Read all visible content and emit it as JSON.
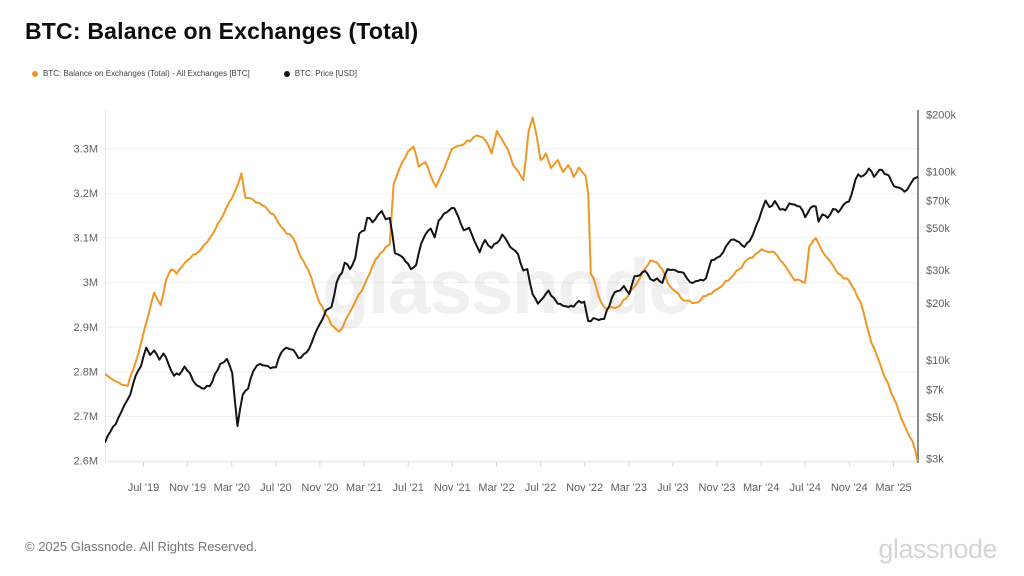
{
  "page": {
    "footer_left": "© 2025 Glassnode. All Rights Reserved.",
    "footer_logo": "glassnode"
  },
  "chart_data": {
    "type": "line",
    "title": "BTC: Balance on Exchanges (Total)",
    "watermark": "glassnode",
    "legend_position": "top-left",
    "grid": "horizontal-only",
    "grid_color": "#f0f0f0",
    "axis_colors": {
      "left_line": "#e8e8e8",
      "bottom_line": "#e6e6e6",
      "tick_mark": "#d9d9d9",
      "right_line": "#4d4d4d",
      "label": "#616161"
    },
    "x_domain_decimal_years": [
      2019.209,
      2025.352
    ],
    "x_ticks": [
      [
        2019.5,
        "Jul '19"
      ],
      [
        2019.833,
        "Nov '19"
      ],
      [
        2020.167,
        "Mar '20"
      ],
      [
        2020.5,
        "Jul '20"
      ],
      [
        2020.833,
        "Nov '20"
      ],
      [
        2021.167,
        "Mar '21"
      ],
      [
        2021.5,
        "Jul '21"
      ],
      [
        2021.833,
        "Nov '21"
      ],
      [
        2022.167,
        "Mar '22"
      ],
      [
        2022.5,
        "Jul '22"
      ],
      [
        2022.833,
        "Nov '22"
      ],
      [
        2023.167,
        "Mar '23"
      ],
      [
        2023.5,
        "Jul '23"
      ],
      [
        2023.833,
        "Nov '23"
      ],
      [
        2024.167,
        "Mar '24"
      ],
      [
        2024.5,
        "Jul '24"
      ],
      [
        2024.833,
        "Nov '24"
      ],
      [
        2025.167,
        "Mar '25"
      ]
    ],
    "y_left": {
      "scale": "linear",
      "unit": "BTC (millions)",
      "range_millions": [
        2.598,
        3.387
      ],
      "ticks": [
        [
          3.3,
          "3.3M"
        ],
        [
          3.2,
          "3.2M"
        ],
        [
          3.1,
          "3.1M"
        ],
        [
          3.0,
          "3M"
        ],
        [
          2.9,
          "2.9M"
        ],
        [
          2.8,
          "2.8M"
        ],
        [
          2.7,
          "2.7M"
        ],
        [
          2.6,
          "2.6M"
        ]
      ]
    },
    "y_right": {
      "scale": "log",
      "unit": "USD (thousands)",
      "range_thousands": [
        2.9,
        212.6
      ],
      "ticks": [
        [
          200,
          "$200k"
        ],
        [
          100,
          "$100k"
        ],
        [
          70,
          "$70k"
        ],
        [
          50,
          "$50k"
        ],
        [
          30,
          "$30k"
        ],
        [
          20,
          "$20k"
        ],
        [
          10,
          "$10k"
        ],
        [
          7,
          "$7k"
        ],
        [
          5,
          "$5k"
        ],
        [
          3,
          "$3k"
        ]
      ]
    },
    "series": [
      {
        "name": "BTC: Balance on Exchanges (Total) - All Exchanges [BTC]",
        "axis": "left",
        "color": "#EE9727",
        "unit": "million BTC",
        "points": [
          [
            2019.21,
            2.795
          ],
          [
            2019.27,
            2.782
          ],
          [
            2019.38,
            2.768
          ],
          [
            2019.46,
            2.84
          ],
          [
            2019.52,
            2.91
          ],
          [
            2019.58,
            2.978
          ],
          [
            2019.63,
            2.95
          ],
          [
            2019.67,
            3.005
          ],
          [
            2019.71,
            3.03
          ],
          [
            2019.75,
            3.02
          ],
          [
            2019.83,
            3.05
          ],
          [
            2019.92,
            3.07
          ],
          [
            2020.0,
            3.1
          ],
          [
            2020.08,
            3.14
          ],
          [
            2020.17,
            3.19
          ],
          [
            2020.24,
            3.245
          ],
          [
            2020.27,
            3.19
          ],
          [
            2020.33,
            3.185
          ],
          [
            2020.42,
            3.17
          ],
          [
            2020.5,
            3.145
          ],
          [
            2020.58,
            3.11
          ],
          [
            2020.63,
            3.1
          ],
          [
            2020.67,
            3.07
          ],
          [
            2020.75,
            3.025
          ],
          [
            2020.83,
            2.955
          ],
          [
            2020.92,
            2.905
          ],
          [
            2020.98,
            2.89
          ],
          [
            2021.08,
            2.945
          ],
          [
            2021.17,
            2.995
          ],
          [
            2021.25,
            3.05
          ],
          [
            2021.33,
            3.08
          ],
          [
            2021.36,
            3.085
          ],
          [
            2021.39,
            3.22
          ],
          [
            2021.42,
            3.245
          ],
          [
            2021.5,
            3.295
          ],
          [
            2021.54,
            3.305
          ],
          [
            2021.58,
            3.26
          ],
          [
            2021.63,
            3.27
          ],
          [
            2021.71,
            3.215
          ],
          [
            2021.79,
            3.27
          ],
          [
            2021.83,
            3.3
          ],
          [
            2021.92,
            3.31
          ],
          [
            2022.02,
            3.33
          ],
          [
            2022.08,
            3.32
          ],
          [
            2022.13,
            3.29
          ],
          [
            2022.17,
            3.34
          ],
          [
            2022.21,
            3.32
          ],
          [
            2022.25,
            3.3
          ],
          [
            2022.29,
            3.265
          ],
          [
            2022.33,
            3.25
          ],
          [
            2022.37,
            3.23
          ],
          [
            2022.41,
            3.34
          ],
          [
            2022.44,
            3.37
          ],
          [
            2022.47,
            3.33
          ],
          [
            2022.5,
            3.275
          ],
          [
            2022.54,
            3.29
          ],
          [
            2022.58,
            3.257
          ],
          [
            2022.63,
            3.275
          ],
          [
            2022.67,
            3.248
          ],
          [
            2022.71,
            3.263
          ],
          [
            2022.75,
            3.237
          ],
          [
            2022.79,
            3.258
          ],
          [
            2022.84,
            3.24
          ],
          [
            2022.86,
            3.2
          ],
          [
            2022.88,
            3.02
          ],
          [
            2022.9,
            3.01
          ],
          [
            2022.92,
            2.99
          ],
          [
            2022.96,
            2.955
          ],
          [
            2023.0,
            2.94
          ],
          [
            2023.08,
            2.945
          ],
          [
            2023.17,
            2.975
          ],
          [
            2023.25,
            3.01
          ],
          [
            2023.33,
            3.05
          ],
          [
            2023.38,
            3.045
          ],
          [
            2023.42,
            3.03
          ],
          [
            2023.46,
            3.0
          ],
          [
            2023.5,
            2.985
          ],
          [
            2023.58,
            2.96
          ],
          [
            2023.67,
            2.955
          ],
          [
            2023.75,
            2.97
          ],
          [
            2023.83,
            2.985
          ],
          [
            2023.92,
            3.005
          ],
          [
            2024.0,
            3.03
          ],
          [
            2024.08,
            3.055
          ],
          [
            2024.17,
            3.075
          ],
          [
            2024.25,
            3.07
          ],
          [
            2024.33,
            3.045
          ],
          [
            2024.42,
            3.005
          ],
          [
            2024.5,
            3.0
          ],
          [
            2024.53,
            3.08
          ],
          [
            2024.58,
            3.1
          ],
          [
            2024.63,
            3.07
          ],
          [
            2024.67,
            3.055
          ],
          [
            2024.75,
            3.02
          ],
          [
            2024.83,
            3.005
          ],
          [
            2024.92,
            2.955
          ],
          [
            2025.0,
            2.865
          ],
          [
            2025.08,
            2.805
          ],
          [
            2025.17,
            2.74
          ],
          [
            2025.25,
            2.68
          ],
          [
            2025.31,
            2.645
          ],
          [
            2025.35,
            2.6
          ]
        ]
      },
      {
        "name": "BTC: Price [USD]",
        "axis": "right",
        "color": "#141414",
        "unit": "USD thousands",
        "points": [
          [
            2019.21,
            3.7
          ],
          [
            2019.25,
            4.2
          ],
          [
            2019.29,
            4.6
          ],
          [
            2019.33,
            5.3
          ],
          [
            2019.4,
            6.6
          ],
          [
            2019.44,
            8.3
          ],
          [
            2019.48,
            9.3
          ],
          [
            2019.52,
            11.7
          ],
          [
            2019.55,
            10.7
          ],
          [
            2019.58,
            11.3
          ],
          [
            2019.62,
            10.1
          ],
          [
            2019.65,
            10.9
          ],
          [
            2019.69,
            9.5
          ],
          [
            2019.73,
            8.3
          ],
          [
            2019.77,
            8.4
          ],
          [
            2019.81,
            9.3
          ],
          [
            2019.85,
            8.6
          ],
          [
            2019.9,
            7.4
          ],
          [
            2019.96,
            7.1
          ],
          [
            2020.0,
            7.3
          ],
          [
            2020.04,
            8.5
          ],
          [
            2020.08,
            9.6
          ],
          [
            2020.13,
            10.2
          ],
          [
            2020.17,
            8.6
          ],
          [
            2020.21,
            4.5
          ],
          [
            2020.25,
            6.6
          ],
          [
            2020.29,
            7.1
          ],
          [
            2020.33,
            8.8
          ],
          [
            2020.38,
            9.6
          ],
          [
            2020.42,
            9.4
          ],
          [
            2020.46,
            9.1
          ],
          [
            2020.5,
            9.2
          ],
          [
            2020.54,
            11.0
          ],
          [
            2020.58,
            11.7
          ],
          [
            2020.63,
            11.4
          ],
          [
            2020.67,
            10.3
          ],
          [
            2020.71,
            10.8
          ],
          [
            2020.75,
            11.5
          ],
          [
            2020.79,
            13.5
          ],
          [
            2020.83,
            15.5
          ],
          [
            2020.88,
            18.5
          ],
          [
            2020.92,
            19.2
          ],
          [
            2020.96,
            26.0
          ],
          [
            2021.0,
            29.2
          ],
          [
            2021.02,
            33.0
          ],
          [
            2021.06,
            30.5
          ],
          [
            2021.1,
            35.0
          ],
          [
            2021.13,
            47.0
          ],
          [
            2021.17,
            49.0
          ],
          [
            2021.19,
            57.0
          ],
          [
            2021.23,
            54.0
          ],
          [
            2021.27,
            59.0
          ],
          [
            2021.3,
            62.0
          ],
          [
            2021.33,
            56.0
          ],
          [
            2021.36,
            57.0
          ],
          [
            2021.38,
            47.0
          ],
          [
            2021.4,
            37.0
          ],
          [
            2021.44,
            36.0
          ],
          [
            2021.48,
            33.5
          ],
          [
            2021.52,
            30.5
          ],
          [
            2021.56,
            32.0
          ],
          [
            2021.6,
            42.0
          ],
          [
            2021.63,
            46.5
          ],
          [
            2021.67,
            50.0
          ],
          [
            2021.7,
            45.0
          ],
          [
            2021.73,
            55.0
          ],
          [
            2021.77,
            60.0
          ],
          [
            2021.81,
            62.5
          ],
          [
            2021.85,
            64.0
          ],
          [
            2021.88,
            57.5
          ],
          [
            2021.92,
            49.0
          ],
          [
            2021.96,
            50.5
          ],
          [
            2022.0,
            43.0
          ],
          [
            2022.04,
            37.5
          ],
          [
            2022.08,
            43.5
          ],
          [
            2022.13,
            39.5
          ],
          [
            2022.17,
            42.0
          ],
          [
            2022.21,
            46.5
          ],
          [
            2022.25,
            42.5
          ],
          [
            2022.29,
            39.0
          ],
          [
            2022.33,
            36.5
          ],
          [
            2022.37,
            30.0
          ],
          [
            2022.4,
            30.5
          ],
          [
            2022.44,
            22.5
          ],
          [
            2022.48,
            20.0
          ],
          [
            2022.52,
            21.5
          ],
          [
            2022.56,
            23.5
          ],
          [
            2022.6,
            21.5
          ],
          [
            2022.63,
            20.0
          ],
          [
            2022.67,
            19.5
          ],
          [
            2022.71,
            19.2
          ],
          [
            2022.75,
            19.3
          ],
          [
            2022.79,
            20.7
          ],
          [
            2022.83,
            20.5
          ],
          [
            2022.86,
            16.2
          ],
          [
            2022.9,
            16.8
          ],
          [
            2022.94,
            16.4
          ],
          [
            2022.98,
            16.6
          ],
          [
            2023.02,
            19.5
          ],
          [
            2023.06,
            23.0
          ],
          [
            2023.1,
            23.5
          ],
          [
            2023.13,
            24.8
          ],
          [
            2023.17,
            22.5
          ],
          [
            2023.21,
            28.0
          ],
          [
            2023.25,
            28.3
          ],
          [
            2023.29,
            29.8
          ],
          [
            2023.33,
            27.0
          ],
          [
            2023.38,
            27.2
          ],
          [
            2023.42,
            25.8
          ],
          [
            2023.46,
            30.5
          ],
          [
            2023.5,
            30.3
          ],
          [
            2023.54,
            29.5
          ],
          [
            2023.58,
            29.2
          ],
          [
            2023.63,
            26.0
          ],
          [
            2023.67,
            26.3
          ],
          [
            2023.71,
            26.8
          ],
          [
            2023.75,
            27.3
          ],
          [
            2023.79,
            34.0
          ],
          [
            2023.83,
            35.0
          ],
          [
            2023.88,
            37.5
          ],
          [
            2023.92,
            42.0
          ],
          [
            2023.96,
            43.8
          ],
          [
            2024.0,
            42.5
          ],
          [
            2024.04,
            40.0
          ],
          [
            2024.08,
            43.0
          ],
          [
            2024.13,
            52.0
          ],
          [
            2024.17,
            62.0
          ],
          [
            2024.2,
            70.5
          ],
          [
            2024.23,
            65.0
          ],
          [
            2024.27,
            70.0
          ],
          [
            2024.31,
            63.0
          ],
          [
            2024.35,
            62.5
          ],
          [
            2024.38,
            68.0
          ],
          [
            2024.42,
            67.0
          ],
          [
            2024.46,
            65.5
          ],
          [
            2024.5,
            57.5
          ],
          [
            2024.54,
            64.5
          ],
          [
            2024.58,
            65.5
          ],
          [
            2024.6,
            54.5
          ],
          [
            2024.63,
            59.5
          ],
          [
            2024.67,
            57.0
          ],
          [
            2024.71,
            63.5
          ],
          [
            2024.75,
            61.0
          ],
          [
            2024.79,
            67.0
          ],
          [
            2024.83,
            69.5
          ],
          [
            2024.85,
            76.0
          ],
          [
            2024.88,
            91.0
          ],
          [
            2024.9,
            97.0
          ],
          [
            2024.94,
            95.5
          ],
          [
            2024.98,
            104.0
          ],
          [
            2025.02,
            94.0
          ],
          [
            2025.06,
            102.5
          ],
          [
            2025.1,
            97.5
          ],
          [
            2025.13,
            96.0
          ],
          [
            2025.17,
            84.0
          ],
          [
            2025.21,
            82.5
          ],
          [
            2025.25,
            78.5
          ],
          [
            2025.29,
            85.0
          ],
          [
            2025.32,
            92.0
          ],
          [
            2025.35,
            94.0
          ]
        ]
      }
    ]
  }
}
